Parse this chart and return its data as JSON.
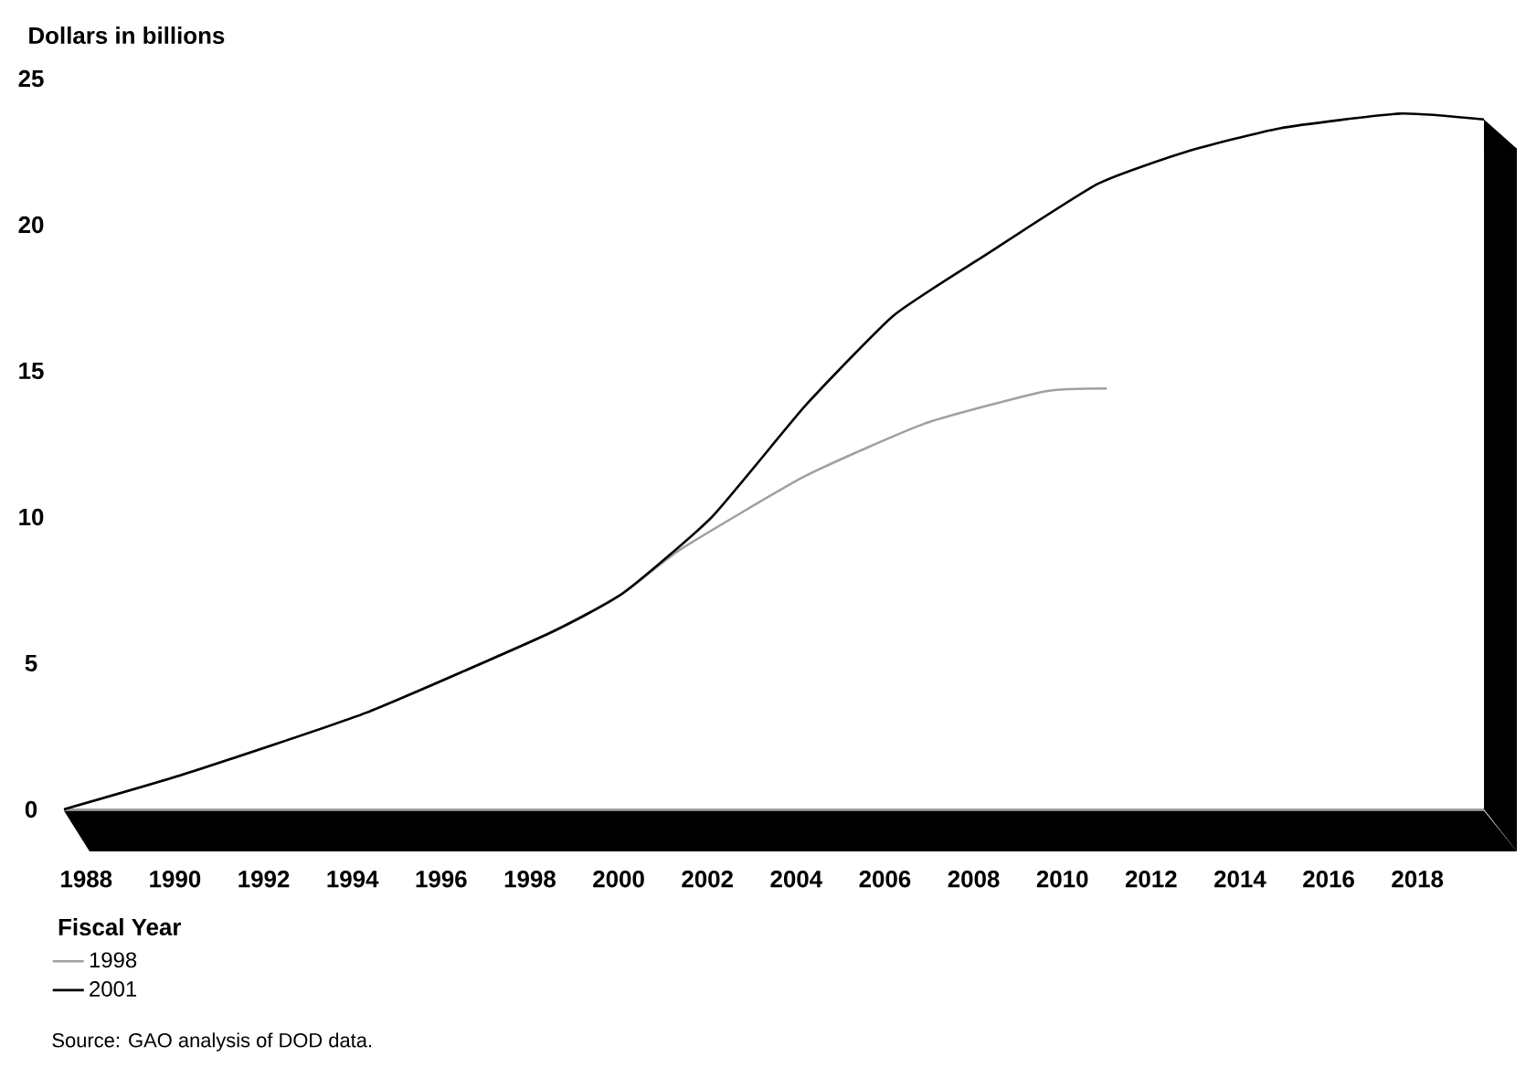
{
  "chart_data": {
    "type": "line",
    "ylabel": "Dollars in billions",
    "xlabel": "Fiscal Year",
    "xlim": [
      1987.5,
      2019.5
    ],
    "ylim": [
      0,
      25
    ],
    "xticks": [
      1988,
      1990,
      1992,
      1994,
      1996,
      1998,
      2000,
      2002,
      2004,
      2006,
      2008,
      2010,
      2012,
      2014,
      2016,
      2018
    ],
    "yticks": [
      0,
      5,
      10,
      15,
      20,
      25
    ],
    "legend": "bottom",
    "marker": "none",
    "line_style": "solid",
    "series": [
      {
        "name": "1998",
        "color": "#a0a0a0",
        "x": [
          1987.5,
          1990.2,
          1994.3,
          1998.4,
          2000.1,
          2001.4,
          2004.2,
          2006.9,
          2009.6,
          2011.0
        ],
        "values": [
          0,
          1.2,
          3.3,
          6.0,
          7.4,
          8.9,
          11.4,
          13.2,
          14.3,
          14.4
        ]
      },
      {
        "name": "2001",
        "color": "#000000",
        "x": [
          1987.5,
          1990.2,
          1994.3,
          1998.4,
          2000.1,
          2002.1,
          2004.2,
          2006.2,
          2008.2,
          2010.8,
          2012.8,
          2014.9,
          2017.6,
          2019.5
        ],
        "values": [
          0,
          1.2,
          3.3,
          6.0,
          7.4,
          10.0,
          13.8,
          16.9,
          18.9,
          21.4,
          22.5,
          23.3,
          23.8,
          23.6
        ]
      }
    ],
    "annotations": [
      "Source: GAO analysis of DOD data."
    ]
  }
}
